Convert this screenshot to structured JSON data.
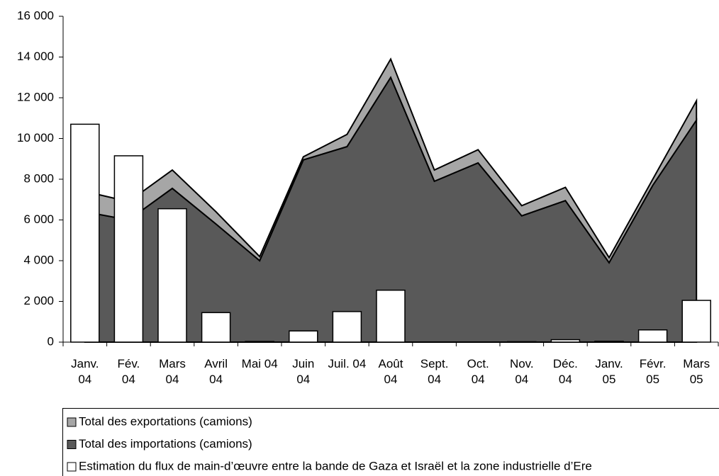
{
  "chart_data": {
    "type": "area-bar",
    "categories": [
      "Janv. 04",
      "Fév. 04",
      "Mars 04",
      "Avril 04",
      "Mai 04",
      "Juin 04",
      "Juil. 04",
      "Août 04",
      "Sept. 04",
      "Oct. 04",
      "Nov. 04",
      "Déc. 04",
      "Janv. 05",
      "Févr. 05",
      "Mars 05"
    ],
    "series": [
      {
        "name": "Total des exportations (camions)",
        "color": "#a6a6a6",
        "kind": "area",
        "values": [
          1000,
          900,
          900,
          600,
          200,
          150,
          600,
          900,
          550,
          650,
          500,
          650,
          250,
          300,
          950
        ]
      },
      {
        "name": "Total des importations (camions)",
        "color": "#595959",
        "kind": "area",
        "values": [
          6400,
          6000,
          7550,
          5800,
          4000,
          8950,
          9600,
          13000,
          7900,
          8800,
          6200,
          6950,
          3900,
          7700,
          10900
        ]
      },
      {
        "name": "Estimation du flux de main-d’œuvre entre la bande de Gaza et Israël et la zone industrielle d’Ere",
        "color": "#ffffff",
        "kind": "bar",
        "values": [
          10700,
          9150,
          6550,
          1450,
          30,
          550,
          1500,
          2550,
          0,
          0,
          20,
          120,
          40,
          600,
          2050
        ]
      }
    ],
    "ylim": [
      0,
      16000
    ],
    "yticks": [
      0,
      {
        "value": 2000,
        "label": "2 000"
      },
      {
        "value": 4000,
        "label": "4 000"
      },
      {
        "value": 6000,
        "label": "6 000"
      },
      {
        "value": 8000,
        "label": "8 000"
      },
      {
        "value": 10000,
        "label": "10 000"
      },
      {
        "value": 12000,
        "label": "12 000"
      },
      {
        "value": 14000,
        "label": "14 000"
      },
      {
        "value": 16000,
        "label": "16 000"
      }
    ]
  }
}
